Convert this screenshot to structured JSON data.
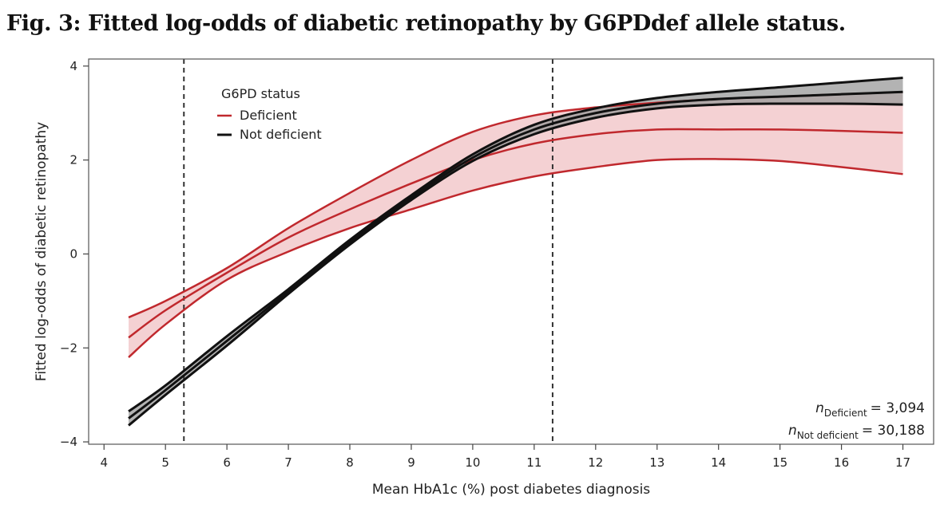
{
  "figure": {
    "title": "Fig. 3: Fitted log-odds of diabetic retinopathy by G6PDdef allele status."
  },
  "chart_data": {
    "type": "line",
    "xlabel": "Mean HbA1c (%) post diabetes diagnosis",
    "ylabel": "Fitted log-odds of diabetic retinopathy",
    "xlim": [
      3.75,
      17.5
    ],
    "ylim": [
      -4.05,
      4.15
    ],
    "xticks": [
      4,
      5,
      6,
      7,
      8,
      9,
      10,
      11,
      12,
      13,
      14,
      15,
      16,
      17
    ],
    "yticks": [
      -4,
      -2,
      0,
      2,
      4
    ],
    "grid": false,
    "legend": {
      "title": "G6PD status",
      "position": "top-left",
      "entries": [
        "Deficient",
        "Not deficient"
      ]
    },
    "reference_lines_x": [
      5.3,
      11.3
    ],
    "annotations": {
      "n_deficient_label": "Deficient",
      "n_deficient_value": "= 3,094",
      "n_not_deficient_label": "Not deficient",
      "n_not_deficient_value": "= 30,188",
      "n_symbol": "n"
    },
    "series": [
      {
        "name": "Deficient",
        "color": "#c0282d",
        "fill": "#f2c9cb",
        "x": [
          4.4,
          5.0,
          6.0,
          7.0,
          8.0,
          9.0,
          10.0,
          11.0,
          12.0,
          13.0,
          14.0,
          15.0,
          16.0,
          17.0
        ],
        "y": [
          -1.78,
          -1.2,
          -0.4,
          0.35,
          0.95,
          1.5,
          2.0,
          2.35,
          2.55,
          2.65,
          2.65,
          2.65,
          2.62,
          2.58
        ],
        "lower": [
          -2.2,
          -1.5,
          -0.55,
          0.05,
          0.55,
          0.95,
          1.35,
          1.65,
          1.85,
          2.0,
          2.02,
          1.98,
          1.85,
          1.7
        ],
        "upper": [
          -1.35,
          -1.0,
          -0.3,
          0.55,
          1.3,
          2.0,
          2.6,
          2.95,
          3.12,
          3.22,
          3.3,
          3.35,
          3.4,
          3.45
        ]
      },
      {
        "name": "Not deficient",
        "color": "#111111",
        "fill": "#9a9a9a",
        "x": [
          4.4,
          5.0,
          6.0,
          7.0,
          8.0,
          9.0,
          10.0,
          11.0,
          12.0,
          13.0,
          14.0,
          15.0,
          16.0,
          17.0
        ],
        "y": [
          -3.5,
          -2.9,
          -1.85,
          -0.8,
          0.25,
          1.2,
          2.05,
          2.65,
          3.0,
          3.2,
          3.3,
          3.35,
          3.4,
          3.45
        ],
        "lower": [
          -3.65,
          -3.0,
          -1.95,
          -0.85,
          0.2,
          1.15,
          1.98,
          2.55,
          2.9,
          3.1,
          3.18,
          3.2,
          3.2,
          3.18
        ],
        "upper": [
          -3.35,
          -2.8,
          -1.75,
          -0.75,
          0.3,
          1.25,
          2.12,
          2.75,
          3.1,
          3.32,
          3.45,
          3.55,
          3.65,
          3.75
        ]
      }
    ]
  }
}
